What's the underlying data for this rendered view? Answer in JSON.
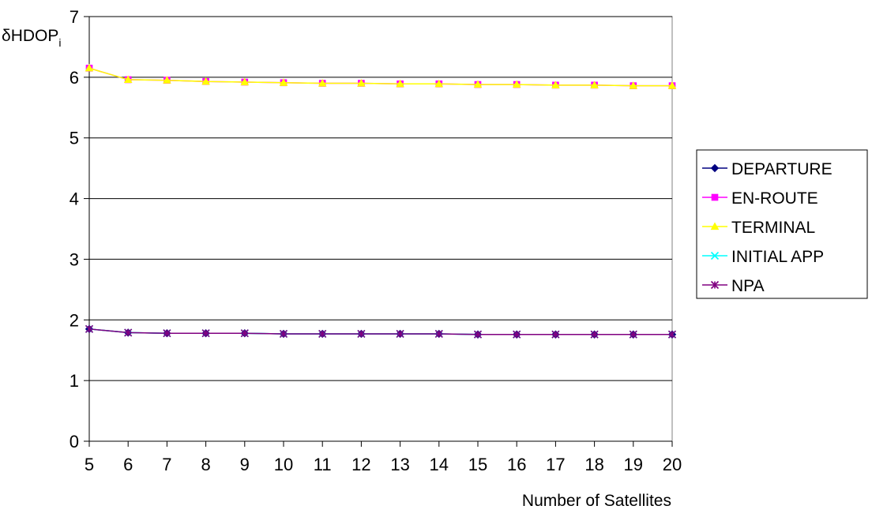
{
  "chart_data": {
    "type": "line",
    "title": "",
    "ylabel": "δHDOP",
    "ylabel_subscript": "i",
    "xlabel": "Number of Satellites",
    "x": [
      5,
      6,
      7,
      8,
      9,
      10,
      11,
      12,
      13,
      14,
      15,
      16,
      17,
      18,
      19,
      20
    ],
    "xlim": [
      5,
      20
    ],
    "ylim": [
      0,
      7
    ],
    "yticks": [
      0,
      1,
      2,
      3,
      4,
      5,
      6,
      7
    ],
    "grid": "horizontal",
    "legend_position": "right",
    "series": [
      {
        "name": "DEPARTURE",
        "color": "#000080",
        "marker": "diamond",
        "values": [
          1.85,
          1.79,
          1.78,
          1.78,
          1.78,
          1.77,
          1.77,
          1.77,
          1.77,
          1.77,
          1.76,
          1.76,
          1.76,
          1.76,
          1.76,
          1.76
        ]
      },
      {
        "name": "EN-ROUTE",
        "color": "#ff00ff",
        "marker": "square",
        "values": [
          6.15,
          5.96,
          5.95,
          5.93,
          5.92,
          5.91,
          5.9,
          5.9,
          5.89,
          5.89,
          5.88,
          5.88,
          5.87,
          5.87,
          5.86,
          5.86
        ]
      },
      {
        "name": "TERMINAL",
        "color": "#ffff00",
        "marker": "triangle",
        "values": [
          6.15,
          5.96,
          5.95,
          5.93,
          5.92,
          5.91,
          5.9,
          5.9,
          5.89,
          5.89,
          5.88,
          5.88,
          5.87,
          5.87,
          5.86,
          5.86
        ]
      },
      {
        "name": "INITIAL APP",
        "color": "#00ffff",
        "marker": "x",
        "values": [
          1.85,
          1.79,
          1.78,
          1.78,
          1.78,
          1.77,
          1.77,
          1.77,
          1.77,
          1.77,
          1.76,
          1.76,
          1.76,
          1.76,
          1.76,
          1.76
        ]
      },
      {
        "name": "NPA",
        "color": "#800080",
        "marker": "star",
        "values": [
          1.85,
          1.79,
          1.78,
          1.78,
          1.78,
          1.77,
          1.77,
          1.77,
          1.77,
          1.77,
          1.76,
          1.76,
          1.76,
          1.76,
          1.76,
          1.76
        ]
      }
    ]
  }
}
